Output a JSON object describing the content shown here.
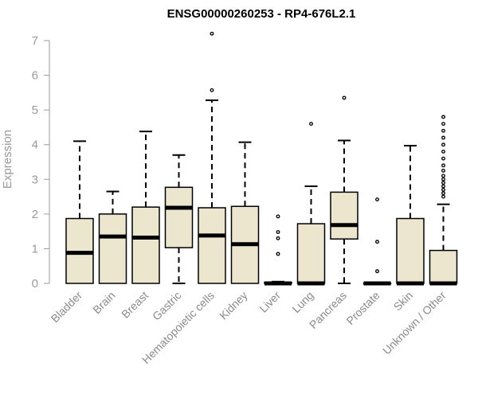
{
  "chart_data": {
    "type": "boxplot",
    "title": "ENSG00000260253 - RP4-676L2.1",
    "ylabel": "Expression",
    "xlabel": "",
    "ylim": [
      0,
      7
    ],
    "yticks": [
      0,
      1,
      2,
      3,
      4,
      5,
      6,
      7
    ],
    "colors": {
      "box_fill": "#ede6cf",
      "stroke": "#000000",
      "axis": "#9a9a9a",
      "text": "#8a8a8a"
    },
    "categories": [
      "Bladder",
      "Brain",
      "Breast",
      "Gastric",
      "Hematopoietic cells",
      "Kidney",
      "Liver",
      "Lung",
      "Pancreas",
      "Prostate",
      "Skin",
      "Unknown / Other"
    ],
    "boxes": [
      {
        "q1": 0.0,
        "median": 0.88,
        "q3": 1.87,
        "whisker_low": 0.0,
        "whisker_high": 4.1,
        "outliers": []
      },
      {
        "q1": 0.0,
        "median": 1.35,
        "q3": 2.0,
        "whisker_low": 0.0,
        "whisker_high": 2.65,
        "outliers": []
      },
      {
        "q1": 0.0,
        "median": 1.32,
        "q3": 2.2,
        "whisker_low": 0.0,
        "whisker_high": 4.38,
        "outliers": []
      },
      {
        "q1": 1.03,
        "median": 2.18,
        "q3": 2.77,
        "whisker_low": 0.0,
        "whisker_high": 3.7,
        "outliers": []
      },
      {
        "q1": 0.0,
        "median": 1.38,
        "q3": 2.18,
        "whisker_low": 0.0,
        "whisker_high": 5.28,
        "outliers": [
          5.57,
          7.2
        ]
      },
      {
        "q1": 0.0,
        "median": 1.13,
        "q3": 2.22,
        "whisker_low": 0.0,
        "whisker_high": 4.07,
        "outliers": []
      },
      {
        "q1": 0.0,
        "median": 0.0,
        "q3": 0.03,
        "whisker_low": 0.0,
        "whisker_high": 0.05,
        "outliers": [
          0.85,
          1.3,
          1.48,
          1.93
        ]
      },
      {
        "q1": 0.0,
        "median": 0.0,
        "q3": 1.72,
        "whisker_low": 0.0,
        "whisker_high": 2.8,
        "outliers": [
          4.6
        ]
      },
      {
        "q1": 1.28,
        "median": 1.68,
        "q3": 2.63,
        "whisker_low": 0.0,
        "whisker_high": 4.12,
        "outliers": [
          5.35
        ]
      },
      {
        "q1": 0.0,
        "median": 0.0,
        "q3": 0.0,
        "whisker_low": 0.0,
        "whisker_high": 0.0,
        "outliers": [
          0.35,
          1.2,
          2.42
        ]
      },
      {
        "q1": 0.0,
        "median": 0.0,
        "q3": 1.87,
        "whisker_low": 0.0,
        "whisker_high": 3.97,
        "outliers": []
      },
      {
        "q1": 0.0,
        "median": 0.0,
        "q3": 0.95,
        "whisker_low": 0.0,
        "whisker_high": 2.28,
        "outliers": [
          2.5,
          2.6,
          2.7,
          2.8,
          2.9,
          3.0,
          3.1,
          3.25,
          3.4,
          3.6,
          3.8,
          4.0,
          4.2,
          4.4,
          4.6,
          4.8
        ]
      }
    ]
  }
}
